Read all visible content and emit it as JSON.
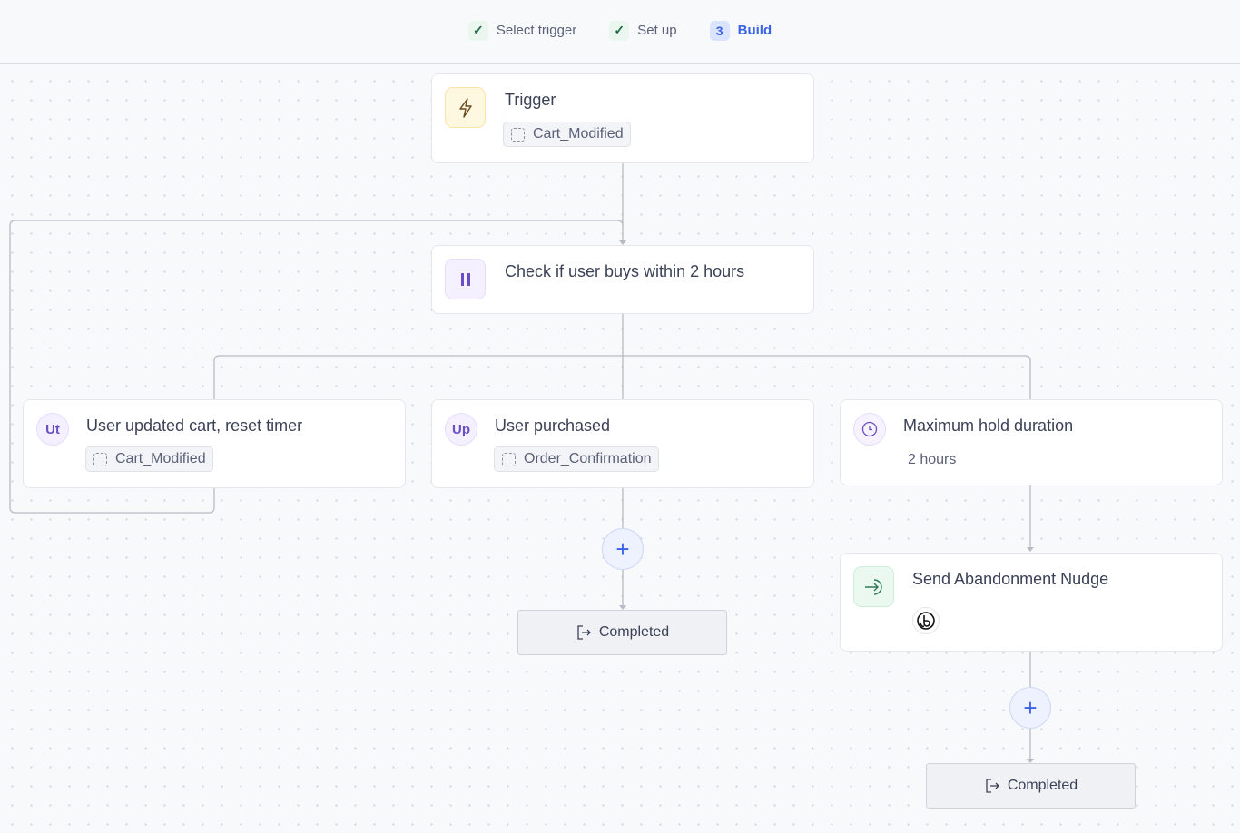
{
  "steps": [
    {
      "label": "Select trigger",
      "state": "done"
    },
    {
      "label": "Set up",
      "state": "done"
    },
    {
      "label": "Build",
      "number": "3",
      "state": "active"
    }
  ],
  "nodes": {
    "trigger": {
      "title": "Trigger",
      "event": "Cart_Modified",
      "icon": "lightning-icon"
    },
    "check": {
      "title": "Check if user buys within 2 hours",
      "icon": "pause-icon"
    },
    "branch_updated": {
      "badge": "Ut",
      "title": "User updated cart, reset timer",
      "event": "Cart_Modified"
    },
    "branch_purchased": {
      "badge": "Up",
      "title": "User purchased",
      "event": "Order_Confirmation"
    },
    "branch_timeout": {
      "title": "Maximum hold duration",
      "subtitle": "2 hours",
      "icon": "clock-icon"
    },
    "send": {
      "title": "Send Abandonment Nudge",
      "icon": "send-icon",
      "channel_icon": "channel-logo"
    }
  },
  "completed_label": "Completed",
  "add_symbol": "+",
  "colors": {
    "accent": "#3a62e6",
    "check": "#1f6b45",
    "trigger_bg": "#fff8e1",
    "pause": "#6a4fc4"
  }
}
